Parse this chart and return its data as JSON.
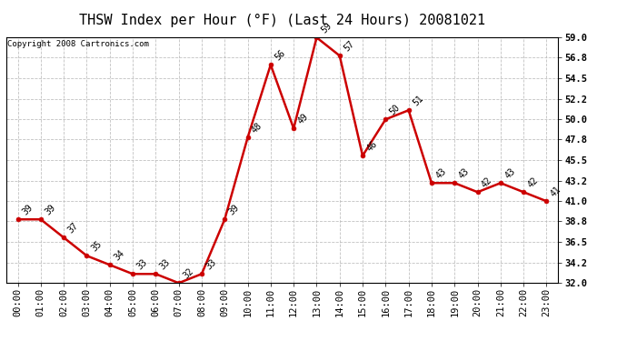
{
  "title": "THSW Index per Hour (°F) (Last 24 Hours) 20081021",
  "copyright": "Copyright 2008 Cartronics.com",
  "hours": [
    "00:00",
    "01:00",
    "02:00",
    "03:00",
    "04:00",
    "05:00",
    "06:00",
    "07:00",
    "08:00",
    "09:00",
    "10:00",
    "11:00",
    "12:00",
    "13:00",
    "14:00",
    "15:00",
    "16:00",
    "17:00",
    "18:00",
    "19:00",
    "20:00",
    "21:00",
    "22:00",
    "23:00"
  ],
  "values": [
    39,
    39,
    37,
    35,
    34,
    33,
    33,
    32,
    33,
    39,
    48,
    56,
    49,
    59,
    57,
    46,
    50,
    51,
    43,
    43,
    42,
    43,
    42,
    41
  ],
  "ylim": [
    32.0,
    59.0
  ],
  "yticks": [
    32.0,
    34.2,
    36.5,
    38.8,
    41.0,
    43.2,
    45.5,
    47.8,
    50.0,
    52.2,
    54.5,
    56.8,
    59.0
  ],
  "ytick_labels": [
    "32.0",
    "34.2",
    "36.5",
    "38.8",
    "41.0",
    "43.2",
    "45.5",
    "47.8",
    "50.0",
    "52.2",
    "54.5",
    "56.8",
    "59.0"
  ],
  "line_color": "#cc0000",
  "marker_color": "#cc0000",
  "bg_color": "#ffffff",
  "grid_color": "#bbbbbb",
  "title_fontsize": 11,
  "label_fontsize": 7.5,
  "annot_fontsize": 7,
  "copyright_fontsize": 6.5
}
